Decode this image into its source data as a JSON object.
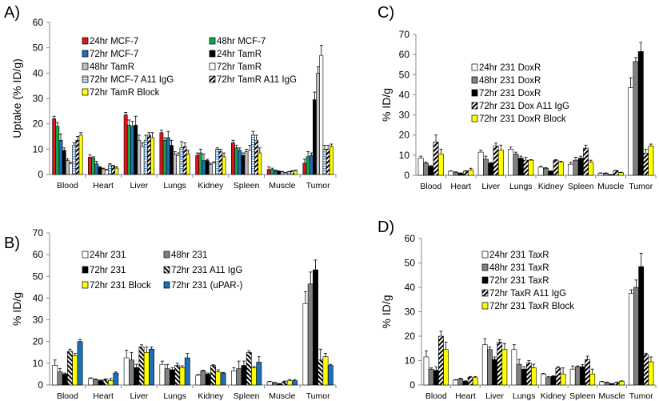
{
  "categories": [
    "Blood",
    "Heart",
    "Liver",
    "Lungs",
    "Kidney",
    "Spleen",
    "Muscle",
    "Tumor"
  ],
  "chart_data": [
    {
      "panel": "A)",
      "type": "bar",
      "ylabel": "Uptake (% ID/g)",
      "ylim": [
        0,
        60
      ],
      "ystep": 10,
      "grid": false,
      "legend": "top-left, two columns",
      "yticks": [
        "0",
        "10",
        "20",
        "30",
        "40",
        "50",
        "60"
      ],
      "series": [
        {
          "name": "24hr MCF-7",
          "fill": "#e0121b",
          "values": [
            22,
            6.8,
            23.5,
            16.5,
            7.5,
            12.5,
            2,
            4.5
          ],
          "errors": [
            1,
            1,
            1,
            1,
            1,
            1,
            1,
            1.5
          ]
        },
        {
          "name": "48hr MCF-7",
          "fill": "#13a54a",
          "values": [
            19,
            6.5,
            19.5,
            13.5,
            8.5,
            10.5,
            2,
            7
          ],
          "errors": [
            1.5,
            0.5,
            2,
            1,
            1.5,
            1,
            0.5,
            2
          ]
        },
        {
          "name": "72hr MCF-7",
          "fill": "#1d6fb8",
          "values": [
            13.5,
            4.2,
            19,
            14.5,
            5.5,
            9.5,
            1.5,
            7.5
          ],
          "errors": [
            2.5,
            1,
            2,
            2.5,
            2.5,
            1,
            0.3,
            1
          ]
        },
        {
          "name": "24hr TamR",
          "fill": "#000000",
          "values": [
            9.5,
            2.8,
            19.5,
            11.5,
            5.5,
            7.5,
            1.2,
            29.5
          ],
          "errors": [
            1,
            0.3,
            3.5,
            2,
            0.5,
            1,
            0.3,
            3
          ]
        },
        {
          "name": "48hr TamR",
          "fill": "#bfbfbf",
          "values": [
            5.5,
            2.2,
            13.5,
            8,
            4,
            9,
            1,
            40
          ],
          "errors": [
            0.7,
            0.3,
            2,
            1,
            0.5,
            1,
            0.2,
            2.5
          ]
        },
        {
          "name": "72hr  TamR",
          "fill": "#ffffff",
          "values": [
            4.3,
            1.8,
            11,
            7.5,
            4.5,
            9.5,
            0.6,
            47
          ],
          "errors": [
            0.5,
            0.3,
            1.5,
            1,
            0.5,
            2,
            0.2,
            4
          ]
        },
        {
          "name": "72hr  MCF-7 A11 IgG",
          "fill": "hstripe",
          "values": [
            11.5,
            3.8,
            13.5,
            10.5,
            10,
            15.5,
            1,
            10
          ],
          "errors": [
            1,
            0.5,
            2,
            2.5,
            0.5,
            1.5,
            0.2,
            1.5
          ]
        },
        {
          "name": "72hr TamR A11 IgG",
          "fill": "diag",
          "values": [
            13.5,
            3.3,
            15.5,
            11,
            9,
            13.5,
            1.3,
            10
          ],
          "errors": [
            1.5,
            0.3,
            1,
            1.5,
            1,
            2,
            0.2,
            1.5
          ]
        },
        {
          "name": "72hr  TamR Block",
          "fill": "#ffff00",
          "values": [
            15.5,
            2.5,
            14.5,
            8,
            7,
            8.5,
            1.5,
            11
          ],
          "errors": [
            1,
            0.5,
            2,
            1.5,
            1.5,
            2,
            0.2,
            1
          ]
        }
      ]
    },
    {
      "panel": "B)",
      "type": "bar",
      "ylabel": "% ID/g",
      "ylim": [
        0,
        70
      ],
      "ystep": 10,
      "grid": false,
      "legend": "top-left, two columns",
      "yticks": [
        "0",
        "10",
        "20",
        "30",
        "40",
        "50",
        "60",
        "70"
      ],
      "series": [
        {
          "name": "24hr 231",
          "fill": "#ffffff",
          "values": [
            9,
            3,
            12.5,
            9.5,
            4.5,
            6.5,
            1.5,
            37.5
          ],
          "errors": [
            2.5,
            0.3,
            3.5,
            1.5,
            0.3,
            1.5,
            0.2,
            5.5
          ]
        },
        {
          "name": "48hr 231",
          "fill": "#808080",
          "values": [
            6,
            2.5,
            11.5,
            7.5,
            6.5,
            7.5,
            1,
            46.5
          ],
          "errors": [
            1.5,
            0.3,
            3.5,
            2,
            0.3,
            3.5,
            0.2,
            5.5
          ]
        },
        {
          "name": "72hr 231",
          "fill": "#000000",
          "values": [
            5,
            2,
            8,
            7,
            5,
            9,
            0.5,
            53
          ],
          "errors": [
            0.5,
            0.3,
            1.5,
            1,
            0.5,
            2,
            0.2,
            4.5
          ]
        },
        {
          "name": "72hr 231 A11 IgG",
          "fill": "diag2",
          "values": [
            15.5,
            2.5,
            17.5,
            9,
            9,
            15,
            1.5,
            11.5
          ],
          "errors": [
            1,
            0.3,
            1,
            1,
            0.3,
            0.8,
            0.3,
            5
          ]
        },
        {
          "name": "72hr 231 Block",
          "fill": "#ffff00",
          "values": [
            13.5,
            2,
            15,
            8,
            6,
            8,
            2,
            13
          ],
          "errors": [
            1,
            1,
            2.5,
            0.8,
            1,
            0.5,
            0.5,
            1.5
          ]
        },
        {
          "name": "72hr 231 (uPAR-)",
          "fill": "#1d6fb8",
          "values": [
            20,
            5.5,
            16.5,
            12.5,
            5.5,
            10.5,
            2,
            9
          ],
          "errors": [
            1,
            0.5,
            1,
            2,
            0.3,
            2.5,
            0.5,
            0.5
          ]
        }
      ]
    },
    {
      "panel": "C)",
      "type": "bar",
      "ylabel": "% ID/g",
      "ylim": [
        0,
        70
      ],
      "ystep": 10,
      "grid": false,
      "legend": "top-center",
      "yticks": [
        "0",
        "10",
        "20",
        "30",
        "40",
        "50",
        "60",
        "70"
      ],
      "series": [
        {
          "name": "24hr 231 DoxR",
          "fill": "#ffffff",
          "values": [
            8.5,
            2,
            11.5,
            13,
            4,
            5.5,
            1,
            43.5
          ],
          "errors": [
            1,
            0.2,
            1,
            1,
            0.5,
            1,
            0.2,
            5
          ]
        },
        {
          "name": "48hr 231 DoxR",
          "fill": "#808080",
          "values": [
            6,
            1.5,
            8,
            10.5,
            3.5,
            7.5,
            1,
            56.5
          ],
          "errors": [
            0.5,
            0.2,
            1.5,
            1,
            0.3,
            1.5,
            0.2,
            2
          ]
        },
        {
          "name": "72hr 231 DoxR",
          "fill": "#000000",
          "values": [
            4.5,
            1,
            6,
            8.5,
            2,
            8.5,
            0.3,
            61.5
          ],
          "errors": [
            0.3,
            0.2,
            0.3,
            1,
            0.2,
            1,
            0.1,
            4.5
          ]
        },
        {
          "name": "72hr 231 Dox A11 IgG",
          "fill": "diag",
          "values": [
            16.5,
            2,
            14.5,
            7.5,
            7.5,
            13.5,
            2.3,
            11
          ],
          "errors": [
            3.5,
            0.3,
            1.5,
            1.5,
            0.3,
            1.5,
            0.2,
            2
          ]
        },
        {
          "name": "72hr 231 DoxR Block",
          "fill": "#ffff00",
          "values": [
            10.5,
            2.5,
            12.5,
            7.5,
            6.5,
            6.5,
            1.3,
            14.5
          ],
          "errors": [
            2.5,
            1,
            2.5,
            0.3,
            0.5,
            1,
            0.2,
            1
          ]
        }
      ]
    },
    {
      "panel": "D)",
      "type": "bar",
      "ylabel": "% ID/g",
      "ylim": [
        0,
        60
      ],
      "ystep": 10,
      "grid": false,
      "legend": "top-center",
      "yticks": [
        "0",
        "10",
        "20",
        "30",
        "40",
        "50",
        "60"
      ],
      "series": [
        {
          "name": "24hr 231 TaxR",
          "fill": "#ffffff",
          "values": [
            11.5,
            2,
            16.5,
            14.5,
            4.5,
            6.5,
            1.3,
            37.5
          ],
          "errors": [
            2.5,
            0.2,
            2.5,
            2,
            0.3,
            1.3,
            0.2,
            1.5
          ]
        },
        {
          "name": "48hr 231 TaxR",
          "fill": "#808080",
          "values": [
            6.5,
            2.5,
            14.5,
            8.5,
            3,
            7.5,
            1,
            40
          ],
          "errors": [
            0.5,
            0.3,
            1,
            2,
            0.5,
            0.3,
            0.2,
            3
          ]
        },
        {
          "name": "72hr 231 TaxR",
          "fill": "#000000",
          "values": [
            6,
            1.5,
            10.5,
            6.5,
            3.5,
            7.5,
            0.5,
            48.5
          ],
          "errors": [
            1.5,
            0.2,
            1,
            1,
            0.3,
            0.8,
            0.1,
            5.5
          ]
        },
        {
          "name": "72hr TaxR A11 IgG",
          "fill": "diag",
          "values": [
            20,
            3.2,
            17.5,
            9,
            7,
            10.5,
            1,
            12.5
          ],
          "errors": [
            2,
            0.3,
            1,
            1,
            0.5,
            1.3,
            0.2,
            0.5
          ]
        },
        {
          "name": "72hr 231 TaxR Block",
          "fill": "#ffff00",
          "values": [
            14.5,
            3,
            14.5,
            7,
            4.5,
            4.5,
            1.5,
            9.5
          ],
          "errors": [
            3,
            0.5,
            2.5,
            1.5,
            2.5,
            2,
            0.2,
            2
          ]
        }
      ]
    }
  ]
}
